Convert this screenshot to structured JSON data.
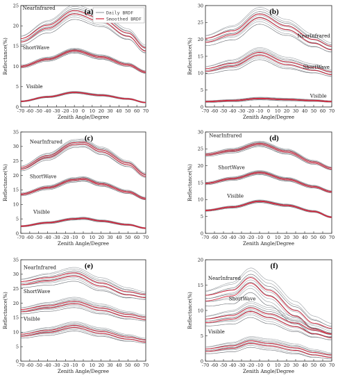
{
  "colors": {
    "daily": "#8a8f95",
    "smoothed": "#d6233a",
    "axis": "#222222"
  },
  "legend": {
    "daily": "Daily BRDF",
    "smoothed": "Smoothed BRDF"
  },
  "chart_data": [
    {
      "type": "line",
      "panel": "(a)",
      "xlabel": "Zenith Angle/Degree",
      "ylabel": "Reflectance(%)",
      "xlim": [
        -70,
        70
      ],
      "ylim": [
        0,
        25
      ],
      "yticks": [
        0,
        5,
        10,
        15,
        20,
        25
      ],
      "xticks": [
        -70,
        -60,
        -50,
        -40,
        -30,
        -20,
        -10,
        0,
        10,
        20,
        30,
        40,
        50,
        60,
        70
      ],
      "legend_position": "top-right",
      "bands": [
        {
          "label": "NearInfrared",
          "label_pos": [
            -68,
            24
          ],
          "x": [
            -70,
            -40,
            -10,
            20,
            50,
            70
          ],
          "y": [
            16.5,
            19.8,
            23.4,
            21.5,
            17.9,
            14.2
          ],
          "spread": 1.8
        },
        {
          "label": "ShortWave",
          "label_pos": [
            -68,
            14.2
          ],
          "x": [
            -70,
            -40,
            -10,
            20,
            50,
            70
          ],
          "y": [
            10.0,
            11.8,
            13.9,
            12.3,
            10.4,
            8.6
          ],
          "spread": 0.6
        },
        {
          "label": "Visible",
          "label_pos": [
            -64,
            4.6
          ],
          "x": [
            -70,
            -40,
            -10,
            20,
            50,
            70
          ],
          "y": [
            1.4,
            2.5,
            3.6,
            2.9,
            2.0,
            1.1
          ],
          "spread": 0.25
        }
      ]
    },
    {
      "type": "line",
      "panel": "(b)",
      "xlabel": "Zenith Angle/Degree",
      "ylabel": "Reflectance(%)",
      "xlim": [
        -70,
        70
      ],
      "ylim": [
        0,
        30
      ],
      "yticks": [
        0,
        5,
        10,
        15,
        20,
        25,
        30
      ],
      "xticks": [
        -70,
        -60,
        -50,
        -40,
        -30,
        -20,
        -10,
        0,
        10,
        20,
        30,
        40,
        50,
        60,
        70
      ],
      "bands": [
        {
          "label": "NearInfrared",
          "label_pos": [
            32,
            20.5
          ],
          "x": [
            -70,
            -40,
            -10,
            20,
            50,
            70
          ],
          "y": [
            19.8,
            22.0,
            27.0,
            23.5,
            19.5,
            17.5
          ],
          "spread": 2.5
        },
        {
          "label": "ShortWave",
          "label_pos": [
            38,
            11.3
          ],
          "x": [
            -70,
            -40,
            -10,
            20,
            50,
            70
          ],
          "y": [
            11.0,
            12.5,
            15.8,
            13.0,
            11.3,
            10.0
          ],
          "spread": 1.8
        },
        {
          "label": "Visible",
          "label_pos": [
            46,
            2.8
          ],
          "x": [
            -70,
            -40,
            -10,
            20,
            50,
            70
          ],
          "y": [
            1.6,
            1.9,
            2.5,
            2.2,
            1.9,
            1.6
          ],
          "spread": 0.4
        }
      ]
    },
    {
      "type": "line",
      "panel": "(c)",
      "xlabel": "Zenith Angle/Degree",
      "ylabel": "Reflectance(%)",
      "xlim": [
        -70,
        70
      ],
      "ylim": [
        0,
        35
      ],
      "yticks": [
        0,
        5,
        10,
        15,
        20,
        25,
        30,
        35
      ],
      "xticks": [
        -70,
        -60,
        -50,
        -40,
        -30,
        -20,
        -10,
        0,
        10,
        20,
        30,
        40,
        50,
        60,
        70
      ],
      "bands": [
        {
          "label": "NearInfrared",
          "label_pos": [
            -60,
            31.0
          ],
          "x": [
            -70,
            -40,
            -10,
            0,
            20,
            50,
            70
          ],
          "y": [
            22.5,
            26.5,
            31.0,
            31.2,
            28.5,
            24.0,
            20.0
          ],
          "spread": 1.4
        },
        {
          "label": "ShortWave",
          "label_pos": [
            -60,
            19.0
          ],
          "x": [
            -70,
            -40,
            -10,
            0,
            20,
            50,
            70
          ],
          "y": [
            13.5,
            15.8,
            18.5,
            18.8,
            17.0,
            14.3,
            12.0
          ],
          "spread": 0.8
        },
        {
          "label": "Visible",
          "label_pos": [
            -56,
            6.8
          ],
          "x": [
            -70,
            -40,
            -10,
            0,
            20,
            50,
            70
          ],
          "y": [
            2.5,
            3.7,
            5.0,
            5.2,
            4.3,
            3.0,
            1.8
          ],
          "spread": 0.4
        }
      ]
    },
    {
      "type": "line",
      "panel": "(d)",
      "xlabel": "Zenith Angle/Degree",
      "ylabel": "Reflectance(%)",
      "xlim": [
        -70,
        70
      ],
      "ylim": [
        0,
        30
      ],
      "yticks": [
        0,
        5,
        10,
        15,
        20,
        25,
        30
      ],
      "xticks": [
        -70,
        -60,
        -50,
        -40,
        -30,
        -20,
        -10,
        0,
        10,
        20,
        30,
        40,
        50,
        60,
        70
      ],
      "bands": [
        {
          "label": "NearInfrared",
          "label_pos": [
            -66,
            28.5
          ],
          "x": [
            -70,
            -40,
            -10,
            20,
            50,
            70
          ],
          "y": [
            23.3,
            24.5,
            26.5,
            24.2,
            21.0,
            19.2
          ],
          "spread": 0.8
        },
        {
          "label": "ShortWave",
          "label_pos": [
            -56,
            19.0
          ],
          "x": [
            -70,
            -40,
            -10,
            20,
            50,
            70
          ],
          "y": [
            14.8,
            16.2,
            18.0,
            16.0,
            13.8,
            12.3
          ],
          "spread": 0.6
        },
        {
          "label": "Visible",
          "label_pos": [
            -46,
            10.6
          ],
          "x": [
            -70,
            -40,
            -10,
            20,
            50,
            70
          ],
          "y": [
            6.8,
            7.8,
            9.5,
            8.3,
            6.5,
            4.8
          ],
          "spread": 0.4
        }
      ]
    },
    {
      "type": "line",
      "panel": "(e)",
      "xlabel": "Zenith Angle/Degree",
      "ylabel": "Reflectance(%)",
      "xlim": [
        -70,
        70
      ],
      "ylim": [
        0,
        35
      ],
      "yticks": [
        0,
        5,
        10,
        15,
        20,
        25,
        30,
        35
      ],
      "xticks": [
        -70,
        -60,
        -50,
        -40,
        -30,
        -20,
        -10,
        0,
        10,
        20,
        30,
        40,
        50,
        60,
        70
      ],
      "bands": [
        {
          "label": "NearInfrared",
          "label_pos": [
            -67,
            31.8
          ],
          "x": [
            -70,
            -40,
            -10,
            20,
            50,
            70
          ],
          "y": [
            27.0,
            28.3,
            30.0,
            26.5,
            23.5,
            22.5
          ],
          "spread": 2.4
        },
        {
          "label": "ShortWave",
          "label_pos": [
            -67,
            23.5
          ],
          "x": [
            -70,
            -40,
            -10,
            20,
            50,
            70
          ],
          "y": [
            17.5,
            18.8,
            20.3,
            18.0,
            15.8,
            14.8
          ],
          "spread": 1.8
        },
        {
          "label": "Visible",
          "label_pos": [
            -67,
            14.0
          ],
          "x": [
            -70,
            -40,
            -10,
            20,
            50,
            70
          ],
          "y": [
            9.0,
            10.3,
            12.0,
            10.0,
            8.0,
            7.0
          ],
          "spread": 1.6
        }
      ]
    },
    {
      "type": "line",
      "panel": "(f)",
      "xlabel": "Zenith Angle/Degree",
      "ylabel": "Reflectance(%)",
      "xlim": [
        -70,
        70
      ],
      "ylim": [
        0,
        20
      ],
      "yticks": [
        0,
        5,
        10,
        15,
        20
      ],
      "xticks": [
        -70,
        -60,
        -50,
        -40,
        -30,
        -20,
        -10,
        0,
        10,
        20,
        30,
        40,
        50,
        60,
        70
      ],
      "bands": [
        {
          "label": "NearInfrared",
          "label_pos": [
            -67,
            16.0
          ],
          "x": [
            -70,
            -40,
            -20,
            0,
            30,
            50,
            70
          ],
          "y": [
            12.5,
            13.5,
            16.0,
            13.5,
            9.5,
            7.0,
            6.0
          ],
          "spread": 2.5
        },
        {
          "label": "ShortWave",
          "label_pos": [
            -44,
            12.0
          ],
          "x": [
            -70,
            -40,
            -20,
            0,
            30,
            50,
            70
          ],
          "y": [
            8.0,
            8.7,
            10.2,
            9.0,
            7.2,
            5.8,
            5.0
          ],
          "spread": 1.6
        },
        {
          "label": "Visible",
          "label_pos": [
            -67,
            5.5
          ],
          "x": [
            -70,
            -40,
            -20,
            0,
            30,
            50,
            70
          ],
          "y": [
            2.2,
            2.8,
            3.8,
            3.3,
            2.4,
            1.5,
            1.0
          ],
          "spread": 1.1
        }
      ]
    }
  ]
}
